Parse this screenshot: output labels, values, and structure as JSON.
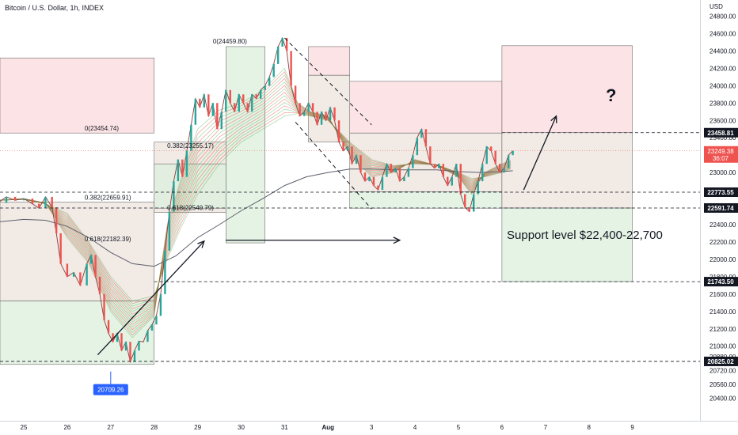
{
  "header": {
    "title": "Bitcoin / U.S. Dollar, 1h, INDEX",
    "currency": "USD"
  },
  "annotations": {
    "support_text": "Support level $22,400-22,700",
    "question_mark": "?",
    "low_label": "20709.26",
    "countdown": "36:07"
  },
  "colors": {
    "up": "#26a69a",
    "down": "#ef5350",
    "ribbon_up": "#4caf50",
    "ribbon_down": "#e53935",
    "red_zone": "#fbd9dc",
    "green_zone": "#dcefdc",
    "brown_zone": "#ece3dc",
    "price_badge": "#ef5350",
    "low_badge": "#2962ff"
  },
  "chart_data": {
    "type": "line",
    "title": "Bitcoin / U.S. Dollar, 1h, INDEX",
    "ylabel": "USD",
    "ylim": [
      20400,
      24800
    ],
    "y_ticks": [
      "24800.00",
      "24600.00",
      "24400.00",
      "24200.00",
      "24000.00",
      "23800.00",
      "23600.00",
      "23400.00",
      "23200.00",
      "23000.00",
      "22800.00",
      "22600.00",
      "22400.00",
      "22200.00",
      "22000.00",
      "21800.00",
      "21600.00",
      "21400.00",
      "21200.00",
      "21000.00",
      "20880.00",
      "20720.00",
      "20560.00",
      "20400.00"
    ],
    "y_tick_values": [
      24800,
      24600,
      24400,
      24200,
      24000,
      23800,
      23600,
      23400,
      23200,
      23000,
      22800,
      22600,
      22400,
      22200,
      22000,
      21800,
      21600,
      21400,
      21200,
      21000,
      20880,
      20720,
      20560,
      20400
    ],
    "x_ticks": [
      "25",
      "26",
      "27",
      "28",
      "29",
      "30",
      "31",
      "Aug",
      "3",
      "4",
      "5",
      "6",
      "7",
      "8",
      "9"
    ],
    "x_tick_days": [
      0,
      1,
      2,
      3,
      4,
      5,
      6,
      7,
      8,
      9,
      10,
      11,
      12,
      13,
      14
    ],
    "price_path": [
      [
        -0.6,
        22650
      ],
      [
        -0.4,
        22720
      ],
      [
        -0.2,
        22680
      ],
      [
        0,
        22700
      ],
      [
        0.2,
        22640
      ],
      [
        0.35,
        22590
      ],
      [
        0.5,
        22720
      ],
      [
        0.65,
        22600
      ],
      [
        0.75,
        22300
      ],
      [
        0.85,
        21950
      ],
      [
        1.0,
        21800
      ],
      [
        1.15,
        21850
      ],
      [
        1.3,
        21700
      ],
      [
        1.45,
        21950
      ],
      [
        1.55,
        22050
      ],
      [
        1.65,
        21800
      ],
      [
        1.75,
        21600
      ],
      [
        1.85,
        21300
      ],
      [
        1.95,
        21150
      ],
      [
        2.05,
        21050
      ],
      [
        2.15,
        21150
      ],
      [
        2.25,
        20950
      ],
      [
        2.35,
        21050
      ],
      [
        2.45,
        20820
      ],
      [
        2.55,
        20950
      ],
      [
        2.65,
        21060
      ],
      [
        2.75,
        21050
      ],
      [
        2.85,
        21180
      ],
      [
        2.95,
        21250
      ],
      [
        3.05,
        21350
      ],
      [
        3.15,
        21600
      ],
      [
        3.25,
        22100
      ],
      [
        3.35,
        22550
      ],
      [
        3.45,
        22900
      ],
      [
        3.55,
        23150
      ],
      [
        3.65,
        22950
      ],
      [
        3.75,
        23250
      ],
      [
        3.85,
        23550
      ],
      [
        3.95,
        23850
      ],
      [
        4.05,
        23750
      ],
      [
        4.15,
        23900
      ],
      [
        4.25,
        23650
      ],
      [
        4.35,
        23800
      ],
      [
        4.45,
        23500
      ],
      [
        4.55,
        23700
      ],
      [
        4.65,
        23950
      ],
      [
        4.75,
        23800
      ],
      [
        4.85,
        23700
      ],
      [
        4.95,
        23900
      ],
      [
        5.05,
        23800
      ],
      [
        5.15,
        23700
      ],
      [
        5.25,
        23900
      ],
      [
        5.35,
        23850
      ],
      [
        5.45,
        23950
      ],
      [
        5.55,
        24000
      ],
      [
        5.65,
        24100
      ],
      [
        5.75,
        24250
      ],
      [
        5.85,
        24450
      ],
      [
        5.95,
        24550
      ],
      [
        6.05,
        24400
      ],
      [
        6.15,
        24000
      ],
      [
        6.25,
        23800
      ],
      [
        6.35,
        23650
      ],
      [
        6.45,
        23700
      ],
      [
        6.55,
        23800
      ],
      [
        6.65,
        23700
      ],
      [
        6.75,
        23550
      ],
      [
        6.85,
        23700
      ],
      [
        6.95,
        23600
      ],
      [
        7.05,
        23750
      ],
      [
        7.15,
        23600
      ],
      [
        7.25,
        23350
      ],
      [
        7.35,
        23250
      ],
      [
        7.45,
        23300
      ],
      [
        7.55,
        23100
      ],
      [
        7.65,
        23200
      ],
      [
        7.75,
        23000
      ],
      [
        7.85,
        22900
      ],
      [
        7.95,
        22950
      ],
      [
        8.05,
        22850
      ],
      [
        8.15,
        22800
      ],
      [
        8.25,
        22950
      ],
      [
        8.35,
        23100
      ],
      [
        8.45,
        23000
      ],
      [
        8.55,
        23050
      ],
      [
        8.65,
        22900
      ],
      [
        8.75,
        22950
      ],
      [
        8.85,
        23050
      ],
      [
        8.95,
        23200
      ],
      [
        9.05,
        23400
      ],
      [
        9.15,
        23500
      ],
      [
        9.25,
        23300
      ],
      [
        9.35,
        23100
      ],
      [
        9.45,
        23050
      ],
      [
        9.55,
        23100
      ],
      [
        9.65,
        22950
      ],
      [
        9.75,
        22850
      ],
      [
        9.85,
        22950
      ],
      [
        9.95,
        23100
      ],
      [
        10.05,
        22750
      ],
      [
        10.15,
        22600
      ],
      [
        10.25,
        22550
      ],
      [
        10.35,
        22750
      ],
      [
        10.45,
        22900
      ],
      [
        10.55,
        23100
      ],
      [
        10.65,
        23300
      ],
      [
        10.75,
        23250
      ],
      [
        10.85,
        23100
      ],
      [
        10.95,
        23000
      ],
      [
        11.05,
        23050
      ],
      [
        11.15,
        23200
      ],
      [
        11.25,
        23250
      ]
    ],
    "ema_path": [
      [
        -0.6,
        22430
      ],
      [
        0,
        22460
      ],
      [
        0.5,
        22450
      ],
      [
        1.0,
        22380
      ],
      [
        1.5,
        22250
      ],
      [
        2.0,
        22080
      ],
      [
        2.5,
        21950
      ],
      [
        3.0,
        21920
      ],
      [
        3.5,
        22040
      ],
      [
        4.0,
        22250
      ],
      [
        4.5,
        22400
      ],
      [
        5.0,
        22560
      ],
      [
        5.5,
        22700
      ],
      [
        6.0,
        22850
      ],
      [
        6.5,
        22950
      ],
      [
        7.0,
        23000
      ],
      [
        7.5,
        23040
      ],
      [
        8.0,
        23040
      ],
      [
        8.5,
        23030
      ],
      [
        9.0,
        23030
      ],
      [
        9.5,
        23030
      ],
      [
        10.0,
        23010
      ],
      [
        10.5,
        23000
      ],
      [
        11.0,
        23010
      ],
      [
        11.25,
        23020
      ]
    ],
    "ribbon_fast": [
      [
        -0.6,
        22680
      ],
      [
        0,
        22700
      ],
      [
        0.5,
        22650
      ],
      [
        1.0,
        22250
      ],
      [
        1.5,
        21950
      ],
      [
        2.0,
        21400
      ],
      [
        2.5,
        21100
      ],
      [
        3.0,
        21350
      ],
      [
        3.3,
        22400
      ],
      [
        3.6,
        22900
      ],
      [
        4.0,
        23500
      ],
      [
        4.5,
        23720
      ],
      [
        5.0,
        23800
      ],
      [
        5.5,
        23950
      ],
      [
        6.0,
        24200
      ],
      [
        6.3,
        23800
      ],
      [
        6.6,
        23700
      ],
      [
        7.0,
        23650
      ],
      [
        7.5,
        23200
      ],
      [
        8.0,
        22950
      ],
      [
        8.5,
        23000
      ],
      [
        9.0,
        23150
      ],
      [
        9.5,
        23080
      ],
      [
        10.0,
        22950
      ],
      [
        10.3,
        22750
      ],
      [
        10.6,
        23000
      ],
      [
        11.0,
        23100
      ],
      [
        11.25,
        23150
      ]
    ],
    "ribbon_slow": [
      [
        -0.6,
        22680
      ],
      [
        0,
        22690
      ],
      [
        0.5,
        22640
      ],
      [
        1.0,
        22530
      ],
      [
        1.5,
        22200
      ],
      [
        2.0,
        21800
      ],
      [
        2.5,
        21520
      ],
      [
        3.0,
        21580
      ],
      [
        3.3,
        22000
      ],
      [
        3.6,
        22350
      ],
      [
        4.0,
        22750
      ],
      [
        4.5,
        23100
      ],
      [
        5.0,
        23350
      ],
      [
        5.5,
        23500
      ],
      [
        6.0,
        23650
      ],
      [
        6.3,
        23680
      ],
      [
        6.6,
        23650
      ],
      [
        7.0,
        23600
      ],
      [
        7.5,
        23350
      ],
      [
        8.0,
        23150
      ],
      [
        8.5,
        23080
      ],
      [
        9.0,
        23100
      ],
      [
        9.5,
        23090
      ],
      [
        10.0,
        23000
      ],
      [
        10.3,
        22930
      ],
      [
        10.6,
        22950
      ],
      [
        11.0,
        23000
      ],
      [
        11.25,
        23050
      ]
    ],
    "zones": [
      {
        "kind": "red",
        "x0": -0.6,
        "x1": 3.0,
        "y0": 23455,
        "y1": 24320
      },
      {
        "kind": "brown",
        "x0": -0.6,
        "x1": 3.0,
        "y0": 21520,
        "y1": 22660
      },
      {
        "kind": "green",
        "x0": -0.6,
        "x1": 3.0,
        "y0": 20790,
        "y1": 21520
      },
      {
        "kind": "green",
        "x0": 4.65,
        "x1": 5.55,
        "y0": 22190,
        "y1": 24450
      },
      {
        "kind": "brown",
        "x0": 3.0,
        "x1": 4.65,
        "y0": 22540,
        "y1": 23350
      },
      {
        "kind": "green",
        "x0": 3.0,
        "x1": 4.65,
        "y0": 22590,
        "y1": 23100
      },
      {
        "kind": "red",
        "x0": 6.55,
        "x1": 7.5,
        "y0": 24120,
        "y1": 24450
      },
      {
        "kind": "brown",
        "x0": 6.55,
        "x1": 7.5,
        "y0": 23350,
        "y1": 24120
      },
      {
        "kind": "red",
        "x0": 7.5,
        "x1": 11.0,
        "y0": 23455,
        "y1": 24050
      },
      {
        "kind": "brown",
        "x0": 7.5,
        "x1": 11.0,
        "y0": 22780,
        "y1": 23455
      },
      {
        "kind": "green",
        "x0": 7.5,
        "x1": 11.0,
        "y0": 22590,
        "y1": 22780
      },
      {
        "kind": "red",
        "x0": 11.0,
        "x1": 14.0,
        "y0": 23459,
        "y1": 24460
      },
      {
        "kind": "brown",
        "x0": 11.0,
        "x1": 14.0,
        "y0": 22591,
        "y1": 23459
      },
      {
        "kind": "green",
        "x0": 11.0,
        "x1": 14.0,
        "y0": 21744,
        "y1": 22591
      }
    ],
    "fib_labels": [
      {
        "text": "0(24459.80)",
        "x": 4.35,
        "y": 24459.8
      },
      {
        "text": "0(23454.74)",
        "x": 1.4,
        "y": 23454.74
      },
      {
        "text": "0.382(23255.17)",
        "x": 3.3,
        "y": 23255.17
      },
      {
        "text": "0.382(22659.91)",
        "x": 1.4,
        "y": 22659.91
      },
      {
        "text": "0.618(22540.79)",
        "x": 3.3,
        "y": 22540.79
      },
      {
        "text": "0.618(22182.39)",
        "x": 1.4,
        "y": 22182.39
      }
    ],
    "horizontal_levels": [
      {
        "value": 23458.81,
        "label": "23458.81",
        "dashed": true,
        "x0": 11.0
      },
      {
        "value": 22773.55,
        "label": "22773.55",
        "dashed": true,
        "x0": -0.6
      },
      {
        "value": 22591.74,
        "label": "22591.74",
        "dashed": true,
        "x0": -0.6
      },
      {
        "value": 21743.5,
        "label": "21743.50",
        "dashed": true,
        "x0": 3.0
      },
      {
        "value": 20825.02,
        "label": "20825.02",
        "dashed": true,
        "x0": -0.6
      }
    ],
    "channel_lines": [
      {
        "from": [
          6.0,
          24550
        ],
        "to": [
          8.0,
          23550
        ]
      },
      {
        "from": [
          6.25,
          23580
        ],
        "to": [
          8.0,
          22580
        ]
      }
    ],
    "arrows": [
      {
        "from": [
          1.7,
          20900
        ],
        "to": [
          4.15,
          22210
        ]
      },
      {
        "from": [
          4.65,
          22220
        ],
        "to": [
          8.65,
          22220
        ]
      },
      {
        "from": [
          11.5,
          22800
        ],
        "to": [
          12.25,
          23650
        ]
      }
    ],
    "current_price": {
      "label": "23249.38",
      "value": 23249.38
    },
    "low_point": {
      "label": "20709.26",
      "value": 20709.26,
      "x": 2.0
    }
  }
}
